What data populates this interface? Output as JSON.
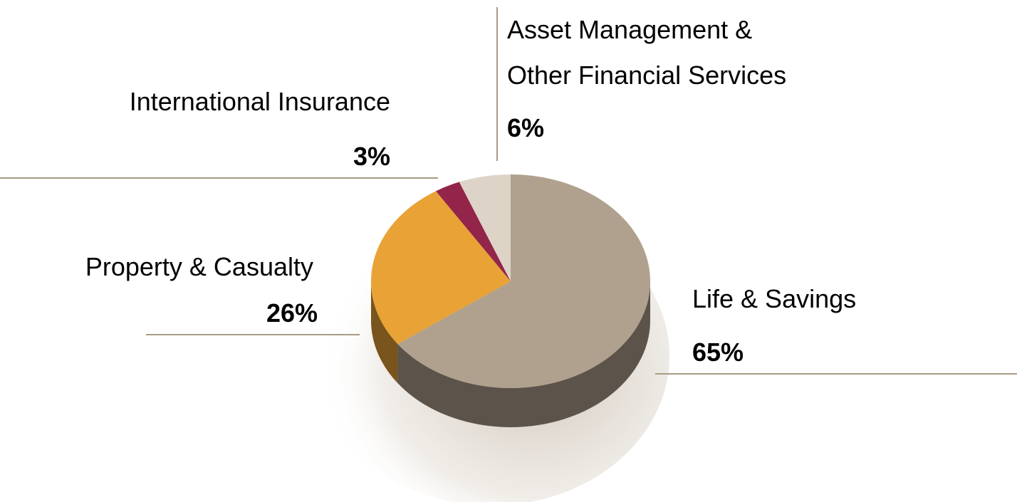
{
  "chart_data": {
    "type": "pie",
    "categories": [
      "Life & Savings",
      "Property & Casualty",
      "International Insurance",
      "Asset Management &\nOther Financial Services"
    ],
    "values": [
      65,
      26,
      3,
      6
    ],
    "value_labels": [
      "65%",
      "26%",
      "3%",
      "6%"
    ],
    "colors": [
      "#b0a18e",
      "#e9a236",
      "#93244a",
      "#ddd4c7"
    ]
  }
}
